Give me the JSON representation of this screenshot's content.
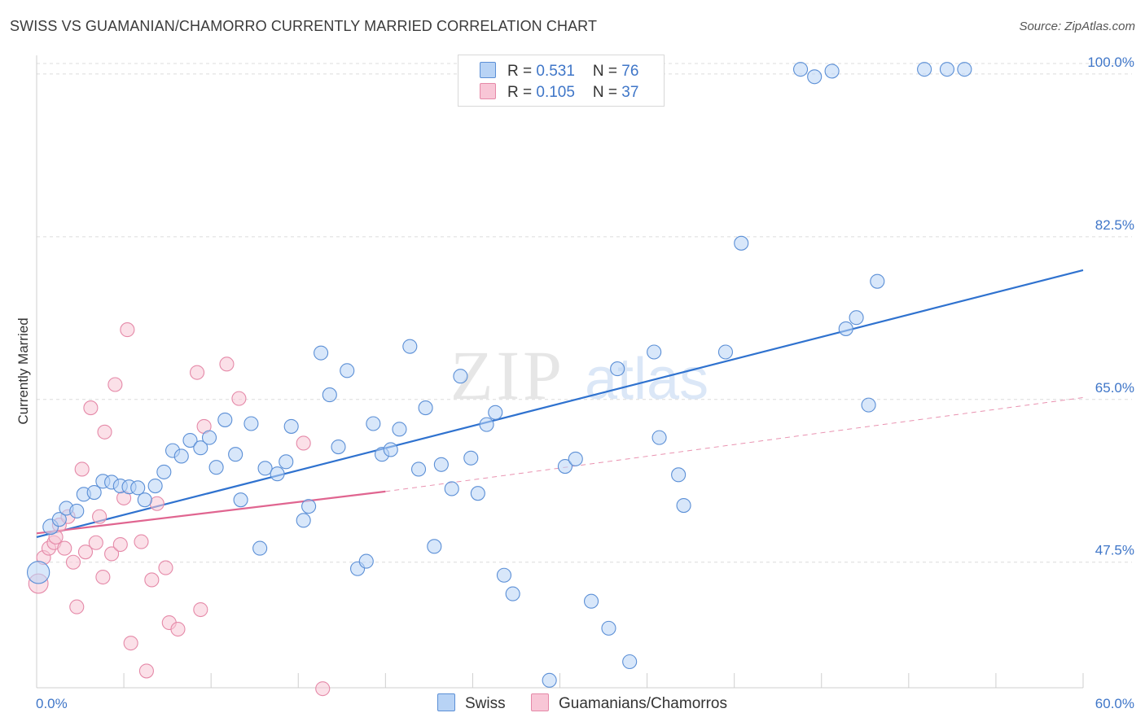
{
  "title": "SWISS VS GUAMANIAN/CHAMORRO CURRENTLY MARRIED CORRELATION CHART",
  "source": "Source: ZipAtlas.com",
  "watermark": {
    "zip": "ZIP",
    "atlas": "atlas"
  },
  "colors": {
    "swiss_fill": "#b8d3f5",
    "swiss_stroke": "#5b8fd6",
    "swiss_line": "#2f72cf",
    "guam_fill": "#f8c6d6",
    "guam_stroke": "#e589a8",
    "guam_line": "#e06590",
    "grid": "#dcdcdc",
    "tick_text": "#3f76c8"
  },
  "legend": {
    "swiss": {
      "r_label": "R = ",
      "r_value": "0.531",
      "n_label": "N = ",
      "n_value": "76"
    },
    "guam": {
      "r_label": "R = ",
      "r_value": "0.105",
      "n_label": "N = ",
      "n_value": "37"
    }
  },
  "bottom_legend": {
    "swiss": "Swiss",
    "guam": "Guamanians/Chamorros"
  },
  "chart_data": {
    "type": "scatter",
    "xlabel": "",
    "ylabel": "Currently Married",
    "xlim": [
      0,
      60
    ],
    "ylim": [
      34,
      102
    ],
    "x_tick_labels": [
      {
        "value": 0,
        "label": "0.0%"
      },
      {
        "value": 60,
        "label": "60.0%"
      }
    ],
    "y_tick_labels": [
      {
        "value": 47.5,
        "label": "47.5%"
      },
      {
        "value": 65.0,
        "label": "65.0%"
      },
      {
        "value": 82.5,
        "label": "82.5%"
      },
      {
        "value": 100.0,
        "label": "100.0%"
      }
    ],
    "grid": true,
    "series": [
      {
        "name": "Swiss",
        "trend": {
          "x": [
            0,
            60
          ],
          "y": [
            50.2,
            78.9
          ]
        },
        "points": [
          {
            "x": 0.1,
            "y": 46.4,
            "s": 1.6
          },
          {
            "x": 0.8,
            "y": 51.3,
            "s": 1.1
          },
          {
            "x": 1.3,
            "y": 52.1
          },
          {
            "x": 1.7,
            "y": 53.3
          },
          {
            "x": 2.3,
            "y": 53.0
          },
          {
            "x": 2.7,
            "y": 54.8
          },
          {
            "x": 3.3,
            "y": 55.0
          },
          {
            "x": 3.8,
            "y": 56.2
          },
          {
            "x": 4.3,
            "y": 56.1
          },
          {
            "x": 4.8,
            "y": 55.7
          },
          {
            "x": 5.3,
            "y": 55.6
          },
          {
            "x": 5.8,
            "y": 55.5
          },
          {
            "x": 6.2,
            "y": 54.2
          },
          {
            "x": 6.8,
            "y": 55.7
          },
          {
            "x": 7.3,
            "y": 57.2
          },
          {
            "x": 7.8,
            "y": 59.5
          },
          {
            "x": 8.3,
            "y": 58.9
          },
          {
            "x": 8.8,
            "y": 60.6
          },
          {
            "x": 9.4,
            "y": 59.8
          },
          {
            "x": 9.9,
            "y": 60.9
          },
          {
            "x": 10.3,
            "y": 57.7
          },
          {
            "x": 10.8,
            "y": 62.8
          },
          {
            "x": 11.4,
            "y": 59.1
          },
          {
            "x": 11.7,
            "y": 54.2
          },
          {
            "x": 12.3,
            "y": 62.4
          },
          {
            "x": 12.8,
            "y": 49.0
          },
          {
            "x": 13.1,
            "y": 57.6
          },
          {
            "x": 13.8,
            "y": 57.0
          },
          {
            "x": 14.3,
            "y": 58.3
          },
          {
            "x": 14.6,
            "y": 62.1
          },
          {
            "x": 15.3,
            "y": 52.0
          },
          {
            "x": 15.6,
            "y": 53.5
          },
          {
            "x": 16.3,
            "y": 70.0
          },
          {
            "x": 16.8,
            "y": 65.5
          },
          {
            "x": 17.3,
            "y": 59.9
          },
          {
            "x": 17.8,
            "y": 68.1
          },
          {
            "x": 18.4,
            "y": 46.8
          },
          {
            "x": 18.9,
            "y": 47.6
          },
          {
            "x": 19.3,
            "y": 62.4
          },
          {
            "x": 19.8,
            "y": 59.1
          },
          {
            "x": 20.3,
            "y": 59.6
          },
          {
            "x": 20.8,
            "y": 61.8
          },
          {
            "x": 21.4,
            "y": 70.7
          },
          {
            "x": 21.9,
            "y": 57.5
          },
          {
            "x": 22.3,
            "y": 64.1
          },
          {
            "x": 22.8,
            "y": 49.2
          },
          {
            "x": 23.2,
            "y": 58.0
          },
          {
            "x": 23.8,
            "y": 55.4
          },
          {
            "x": 24.3,
            "y": 67.5
          },
          {
            "x": 24.9,
            "y": 58.7
          },
          {
            "x": 25.3,
            "y": 54.9
          },
          {
            "x": 25.8,
            "y": 62.3
          },
          {
            "x": 26.3,
            "y": 63.6
          },
          {
            "x": 26.8,
            "y": 46.1
          },
          {
            "x": 27.3,
            "y": 44.1
          },
          {
            "x": 29.4,
            "y": 34.8
          },
          {
            "x": 30.3,
            "y": 57.8
          },
          {
            "x": 30.9,
            "y": 58.6
          },
          {
            "x": 31.8,
            "y": 43.3
          },
          {
            "x": 32.8,
            "y": 40.4
          },
          {
            "x": 33.3,
            "y": 68.3
          },
          {
            "x": 34.0,
            "y": 36.8
          },
          {
            "x": 35.4,
            "y": 70.1
          },
          {
            "x": 35.7,
            "y": 60.9
          },
          {
            "x": 36.8,
            "y": 56.9
          },
          {
            "x": 37.1,
            "y": 53.6
          },
          {
            "x": 39.5,
            "y": 70.1
          },
          {
            "x": 40.4,
            "y": 81.8
          },
          {
            "x": 43.8,
            "y": 100.5
          },
          {
            "x": 44.6,
            "y": 99.7
          },
          {
            "x": 45.6,
            "y": 100.3
          },
          {
            "x": 46.4,
            "y": 72.6
          },
          {
            "x": 47.0,
            "y": 73.8
          },
          {
            "x": 47.7,
            "y": 64.4
          },
          {
            "x": 48.2,
            "y": 77.7
          },
          {
            "x": 50.9,
            "y": 100.5
          },
          {
            "x": 52.2,
            "y": 100.5
          },
          {
            "x": 53.2,
            "y": 100.5
          }
        ]
      },
      {
        "name": "Guamanians/Chamorros",
        "trend": {
          "x": [
            0,
            20
          ],
          "y": [
            50.6,
            55.1
          ]
        },
        "trend_ext": {
          "x": [
            20,
            60
          ],
          "y": [
            55.1,
            65.2
          ]
        },
        "points": [
          {
            "x": 0.1,
            "y": 45.2,
            "s": 1.4
          },
          {
            "x": 0.4,
            "y": 48.0
          },
          {
            "x": 0.7,
            "y": 49.0
          },
          {
            "x": 1.0,
            "y": 49.6
          },
          {
            "x": 1.3,
            "y": 51.5
          },
          {
            "x": 1.6,
            "y": 49.0
          },
          {
            "x": 1.8,
            "y": 52.4
          },
          {
            "x": 2.1,
            "y": 47.5
          },
          {
            "x": 2.3,
            "y": 42.7
          },
          {
            "x": 2.6,
            "y": 57.5
          },
          {
            "x": 2.8,
            "y": 48.6
          },
          {
            "x": 3.1,
            "y": 64.1
          },
          {
            "x": 3.4,
            "y": 49.6
          },
          {
            "x": 3.6,
            "y": 52.4
          },
          {
            "x": 3.8,
            "y": 45.9
          },
          {
            "x": 3.9,
            "y": 61.5
          },
          {
            "x": 4.3,
            "y": 48.4
          },
          {
            "x": 4.5,
            "y": 66.6
          },
          {
            "x": 4.8,
            "y": 49.4
          },
          {
            "x": 5.0,
            "y": 54.4
          },
          {
            "x": 5.2,
            "y": 72.5
          },
          {
            "x": 5.4,
            "y": 38.8
          },
          {
            "x": 6.3,
            "y": 35.8
          },
          {
            "x": 6.0,
            "y": 49.7
          },
          {
            "x": 6.6,
            "y": 45.6
          },
          {
            "x": 6.9,
            "y": 53.8
          },
          {
            "x": 7.4,
            "y": 46.9
          },
          {
            "x": 7.6,
            "y": 41.0
          },
          {
            "x": 8.1,
            "y": 40.3
          },
          {
            "x": 9.2,
            "y": 67.9
          },
          {
            "x": 9.4,
            "y": 42.4
          },
          {
            "x": 9.6,
            "y": 62.1
          },
          {
            "x": 10.9,
            "y": 68.8
          },
          {
            "x": 11.6,
            "y": 65.1
          },
          {
            "x": 15.3,
            "y": 60.3
          },
          {
            "x": 16.4,
            "y": 33.9
          },
          {
            "x": 1.1,
            "y": 50.2
          }
        ]
      }
    ]
  }
}
